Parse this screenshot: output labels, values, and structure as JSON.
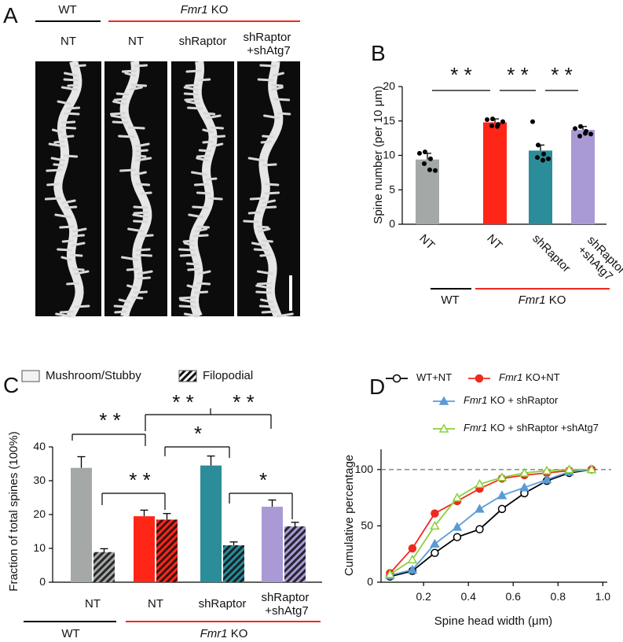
{
  "panel_a": {
    "label": "A",
    "groups": [
      "WT",
      "Fmr1 KO"
    ],
    "columns": [
      "NT",
      "NT",
      "shRaptor",
      "shRaptor +shAtg7"
    ]
  },
  "chart_data": [
    {
      "type": "bar",
      "panel_label": "B",
      "ylabel": "Spine number (per 10 μm)",
      "categories": [
        "NT",
        "NT",
        "shRaptor",
        "shRaptor +shAtg7"
      ],
      "values": [
        9.4,
        14.8,
        10.7,
        13.7
      ],
      "errors": [
        0.9,
        0.5,
        0.8,
        0.5
      ],
      "points": [
        [
          10.3,
          10.5,
          9.5,
          8.8,
          7.9,
          7.8
        ],
        [
          15.2,
          15.3,
          14.5,
          14.3,
          14.2,
          14.9
        ],
        [
          14.9,
          11.5,
          10.2,
          9.7,
          9.3,
          9.5
        ],
        [
          13.9,
          14.2,
          13.5,
          12.8,
          13.2,
          13.1
        ]
      ],
      "colors": [
        "#a4a8a6",
        "#ff2618",
        "#2b8c9a",
        "#a99ad6"
      ],
      "ylim": [
        0,
        20
      ],
      "yticks": [
        0,
        5,
        10,
        15,
        20
      ],
      "annotations": [
        "* *",
        "* *",
        "* *"
      ],
      "groups": [
        "WT",
        "Fmr1 KO"
      ]
    },
    {
      "type": "grouped_bar",
      "panel_label": "C",
      "ylabel": "Fraction of total spines (100%)",
      "categories": [
        "NT",
        "NT",
        "shRaptor",
        "shRaptor +shAtg7"
      ],
      "colors": [
        "#a4a8a6",
        "#ff2618",
        "#2b8c9a",
        "#a99ad6"
      ],
      "series": [
        {
          "name": "Mushroom/Stubby",
          "hatch": false,
          "values": [
            33.8,
            19.5,
            34.5,
            22.3
          ],
          "errors": [
            3.3,
            1.8,
            2.8,
            2.0
          ]
        },
        {
          "name": "Filopodial",
          "hatch": true,
          "values": [
            8.9,
            18.5,
            10.9,
            16.5
          ],
          "errors": [
            1.0,
            1.8,
            1.0,
            1.2
          ]
        }
      ],
      "ylim": [
        0,
        40
      ],
      "yticks": [
        0,
        10,
        20,
        30,
        40
      ],
      "annotations": [
        "* *",
        "* *",
        "* *",
        "*",
        "* *",
        "*"
      ],
      "groups": [
        "WT",
        "Fmr1 KO"
      ]
    },
    {
      "type": "line",
      "panel_label": "D",
      "xlabel": "Spine head width (μm)",
      "ylabel": "Cumulative percentage",
      "x": [
        0.05,
        0.15,
        0.25,
        0.35,
        0.45,
        0.55,
        0.65,
        0.75,
        0.85,
        0.95
      ],
      "series": [
        {
          "name": "WT+NT",
          "color": "#000000",
          "marker": "circle",
          "filled": false,
          "values": [
            5,
            10,
            26,
            40,
            47,
            65,
            79,
            90,
            97,
            100
          ]
        },
        {
          "name": "Fmr1 KO+NT",
          "color": "#ee2a1e",
          "marker": "circle",
          "filled": true,
          "values": [
            8,
            30,
            61,
            72,
            83,
            92,
            95,
            97,
            99,
            100
          ]
        },
        {
          "name": "Fmr1 KO + shRaptor",
          "color": "#5b9bd5",
          "marker": "triangle",
          "filled": true,
          "values": [
            6,
            11,
            34,
            49,
            65,
            77,
            84,
            91,
            98,
            100
          ]
        },
        {
          "name": "Fmr1 KO + shRaptor +shAtg7",
          "color": "#8ccf3c",
          "marker": "triangle",
          "filled": false,
          "values": [
            7,
            20,
            50,
            75,
            87,
            93,
            97,
            99,
            100,
            100
          ]
        }
      ],
      "xlim": [
        0.01,
        1.02
      ],
      "ylim": [
        0,
        118
      ],
      "xticks": [
        0.2,
        0.4,
        0.6,
        0.8,
        {
          "value": 1,
          "label": "1.0"
        }
      ],
      "yticks": [
        0,
        50,
        100
      ],
      "reference_line": 100
    }
  ]
}
